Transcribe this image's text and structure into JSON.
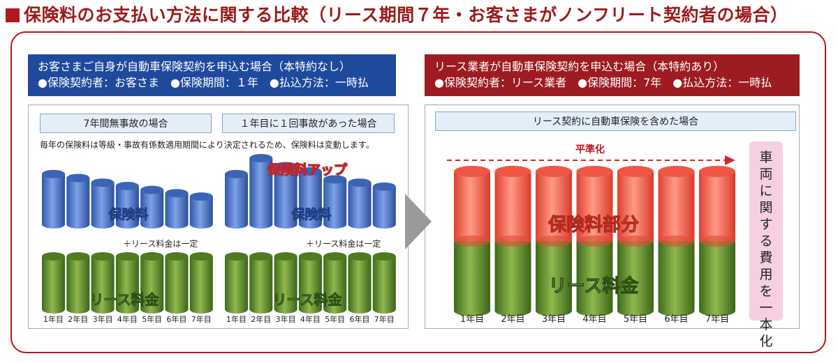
{
  "title": "保険料のお支払い方法に関する比較（リース期間７年・お客さまがノンフリート契約者の場合）",
  "colors": {
    "brand_red": "#b0191e",
    "blue": "#1f4a9c",
    "dark_red": "#9c1c22",
    "cyl_blue": "#4a74c8",
    "cyl_green": "#5f8a2c",
    "cyl_red": "#f26252",
    "pink": "#f6cfe0"
  },
  "left": {
    "header_line1": "お客さまご自身が自動車保険契約を申込む場合（本特約なし）",
    "header_line2": "●保険契約者：お客さま　●保険期間：１年　●払込方法：一時払",
    "sub_a": "7年間無事故の場合",
    "sub_b": "１年目に１回事故があった場合",
    "note": "毎年の保険料は等級・事故有係数適用期間により決定されるため、保険料は変動します。",
    "insurance_label": "保険料",
    "insurance_up_label": "保険料アップ",
    "plus_lease": "＋リース料金は一定",
    "lease_label": "リース料金"
  },
  "right": {
    "header_line1": "リース業者が自動車保険契約を申込む場合（本特約あり）",
    "header_line2": "●保険契約者：リース業者　●保険期間：7年　●払込方法：一時払",
    "sub": "リース契約に自動車保険を含めた場合",
    "leveled": "平準化",
    "insurance_part": "保険料部分",
    "lease_label": "リース料金",
    "side_note": [
      "車",
      "両",
      "に",
      "関",
      "す",
      "る",
      "費",
      "用",
      "を",
      "一",
      "本",
      "化"
    ]
  },
  "chart_data": [
    {
      "type": "bar",
      "title": "7年間無事故の場合",
      "categories": [
        "1年目",
        "2年目",
        "3年目",
        "4年目",
        "5年目",
        "6年目",
        "7年目"
      ],
      "series": [
        {
          "name": "保険料",
          "values": [
            76,
            70,
            63,
            58,
            52,
            47,
            42
          ]
        },
        {
          "name": "リース料金",
          "values": [
            100,
            100,
            100,
            100,
            100,
            100,
            100
          ]
        }
      ]
    },
    {
      "type": "bar",
      "title": "１年目に１回事故があった場合",
      "categories": [
        "1年目",
        "2年目",
        "3年目",
        "4年目",
        "5年目",
        "6年目",
        "7年目"
      ],
      "series": [
        {
          "name": "保険料",
          "values": [
            76,
            100,
            88,
            80,
            68,
            63,
            57
          ]
        },
        {
          "name": "リース料金",
          "values": [
            100,
            100,
            100,
            100,
            100,
            100,
            100
          ]
        }
      ]
    },
    {
      "type": "bar",
      "title": "リース契約に自動車保険を含めた場合",
      "categories": [
        "1年目",
        "2年目",
        "3年目",
        "4年目",
        "5年目",
        "6年目",
        "7年目"
      ],
      "series": [
        {
          "name": "保険料部分",
          "values": [
            100,
            100,
            100,
            100,
            100,
            100,
            100
          ]
        },
        {
          "name": "リース料金",
          "values": [
            100,
            100,
            100,
            100,
            100,
            100,
            100
          ]
        }
      ]
    }
  ]
}
